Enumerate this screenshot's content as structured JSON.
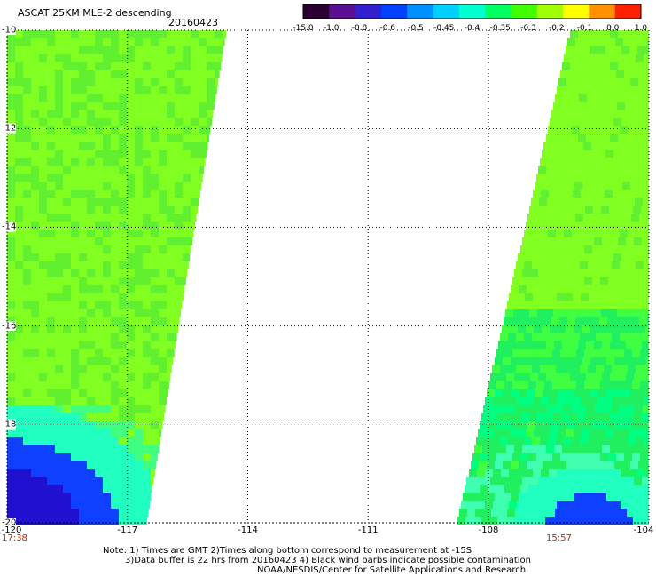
{
  "header": {
    "title": "ASCAT 25KM MLE-2 descending",
    "date": "20160423"
  },
  "colorbar": {
    "labels": [
      "-15.0",
      "-1.0",
      "-0.8",
      "-0.6",
      "-0.5",
      "-0.45",
      "-0.4",
      "-0.35",
      "-0.3",
      "-0.2",
      "-0.1",
      "0.0",
      "1.0"
    ],
    "colors": [
      "#2a0033",
      "#5a1090",
      "#3020d0",
      "#0040ff",
      "#0090ff",
      "#00d0ff",
      "#00ffd0",
      "#00ff60",
      "#40ff00",
      "#a0ff00",
      "#ffff00",
      "#ff9000",
      "#ff2000"
    ]
  },
  "map": {
    "lat_labels": [
      "-10",
      "-12",
      "-14",
      "-16",
      "-18",
      "-20"
    ],
    "lon_labels": [
      "-120",
      "-117",
      "-114",
      "-111",
      "-108",
      "-104"
    ],
    "lat_range": [
      -10,
      -20
    ],
    "lon_range": [
      -120,
      -104
    ],
    "left_swath_time": "17:38",
    "right_swath_time": "15:57",
    "swath_colors": {
      "base": "#80ff20",
      "mid": "#60f030",
      "cyan": "#20ffc0",
      "blue": "#1040ff",
      "deepblue": "#2010d0"
    }
  },
  "notes": {
    "line1": "Note: 1) Times are GMT 2)Times along bottom correspond to measurement at -15S",
    "line2": "3)Data buffer is 22 hrs from 20160423 4) Black wind barbs indicate possible contamination",
    "line3": "NOAA/NESDIS/Center for Satellite Applications and Research"
  }
}
